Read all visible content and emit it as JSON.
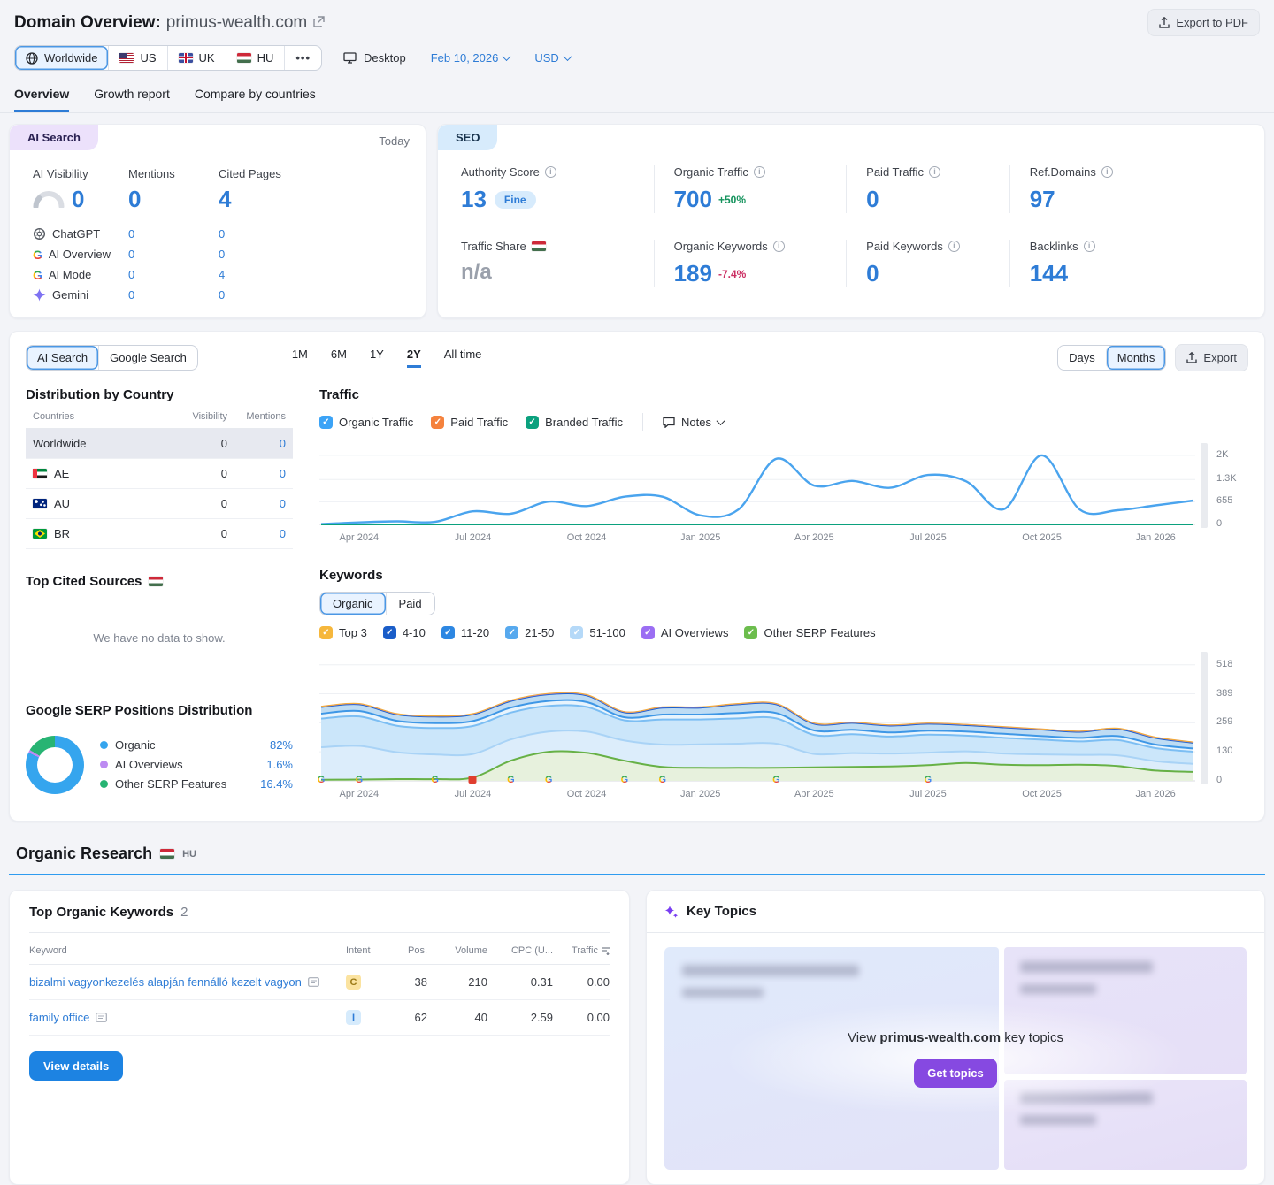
{
  "header": {
    "title": "Domain Overview:",
    "domain": "primus-wealth.com",
    "export_pdf_label": "Export to PDF",
    "locations": [
      {
        "label": "Worldwide",
        "selected": true
      },
      {
        "label": "US"
      },
      {
        "label": "UK"
      },
      {
        "label": "HU"
      }
    ],
    "more_label": "•••",
    "device_label": "Desktop",
    "date_label": "Feb 10, 2026",
    "currency_label": "USD"
  },
  "tabs": {
    "items": [
      {
        "label": "Overview",
        "active": true
      },
      {
        "label": "Growth report"
      },
      {
        "label": "Compare by countries"
      }
    ]
  },
  "ai_card": {
    "badge": "AI Search",
    "period": "Today",
    "cols": {
      "visibility": "AI Visibility",
      "mentions": "Mentions",
      "cited": "Cited Pages"
    },
    "totals": {
      "visibility": "0",
      "mentions": "0",
      "cited": "4"
    },
    "rows": [
      {
        "name": "ChatGPT",
        "mentions": "0",
        "cited": "0"
      },
      {
        "name": "AI Overview",
        "mentions": "0",
        "cited": "0"
      },
      {
        "name": "AI Mode",
        "mentions": "0",
        "cited": "4"
      },
      {
        "name": "Gemini",
        "mentions": "0",
        "cited": "0"
      }
    ]
  },
  "seo_card": {
    "badge": "SEO",
    "metrics": [
      {
        "label": "Authority Score",
        "value": "13",
        "pill": "Fine"
      },
      {
        "label": "Organic Traffic",
        "value": "700",
        "delta": "+50%"
      },
      {
        "label": "Paid Traffic",
        "value": "0"
      },
      {
        "label": "Ref.Domains",
        "value": "97"
      },
      {
        "label": "Traffic Share",
        "value": "n/a"
      },
      {
        "label": "Organic Keywords",
        "value": "189",
        "delta": "-7.4%"
      },
      {
        "label": "Paid Keywords",
        "value": "0"
      },
      {
        "label": "Backlinks",
        "value": "144"
      }
    ]
  },
  "toolbar": {
    "source_tabs": [
      {
        "label": "AI Search",
        "selected": true
      },
      {
        "label": "Google Search"
      }
    ],
    "ranges": [
      {
        "label": "1M"
      },
      {
        "label": "6M"
      },
      {
        "label": "1Y"
      },
      {
        "label": "2Y",
        "active": true
      },
      {
        "label": "All time"
      }
    ],
    "granularity": [
      {
        "label": "Days"
      },
      {
        "label": "Months",
        "selected": true
      }
    ],
    "export_label": "Export"
  },
  "distribution": {
    "title": "Distribution by Country",
    "col_country": "Countries",
    "col_visibility": "Visibility",
    "col_mentions": "Mentions",
    "rows": [
      {
        "country": "Worldwide",
        "visibility": "0",
        "mentions": "0",
        "selected": true
      },
      {
        "country": "AE",
        "visibility": "0",
        "mentions": "0"
      },
      {
        "country": "AU",
        "visibility": "0",
        "mentions": "0"
      },
      {
        "country": "BR",
        "visibility": "0",
        "mentions": "0"
      }
    ]
  },
  "top_cited": {
    "title": "Top Cited Sources",
    "empty": "We have no data to show."
  },
  "serp_dist": {
    "title": "Google SERP Positions Distribution"
  },
  "traffic_section": {
    "title": "Traffic",
    "filters": [
      {
        "label": "Organic Traffic",
        "color": "#3ba3f6"
      },
      {
        "label": "Paid Traffic",
        "color": "#f5823d"
      },
      {
        "label": "Branded Traffic",
        "color": "#0ba17e"
      }
    ],
    "notes_label": "Notes"
  },
  "keywords_section": {
    "title": "Keywords",
    "toggle": [
      {
        "label": "Organic",
        "selected": true
      },
      {
        "label": "Paid"
      }
    ],
    "filters": [
      {
        "label": "Top 3",
        "color": "#f6b73c"
      },
      {
        "label": "4-10",
        "color": "#1a5dc8"
      },
      {
        "label": "11-20",
        "color": "#2d87e2"
      },
      {
        "label": "21-50",
        "color": "#57a9ee"
      },
      {
        "label": "51-100",
        "color": "#b5d9f8"
      },
      {
        "label": "AI Overviews",
        "color": "#9b6ef3"
      },
      {
        "label": "Other SERP Features",
        "color": "#6cbd4d"
      }
    ]
  },
  "organic_research": {
    "title": "Organic Research",
    "country": "HU"
  },
  "top_keywords": {
    "title": "Top Organic Keywords",
    "count": "2",
    "columns": {
      "keyword": "Keyword",
      "intent": "Intent",
      "pos": "Pos.",
      "volume": "Volume",
      "cpc": "CPC (U...",
      "traffic": "Traffic"
    },
    "rows": [
      {
        "keyword": "bizalmi vagyonkezelés alapján fennálló kezelt vagyon",
        "intent": "C",
        "intent_bg": "#fbe3a0",
        "intent_fg": "#9c7a16",
        "pos": "38",
        "volume": "210",
        "cpc": "0.31",
        "traffic": "0.00"
      },
      {
        "keyword": "family office",
        "intent": "I",
        "intent_bg": "#d6ebfc",
        "intent_fg": "#2e7cd6",
        "pos": "62",
        "volume": "40",
        "cpc": "2.59",
        "traffic": "0.00"
      }
    ],
    "button": "View details"
  },
  "key_topics": {
    "title": "Key Topics",
    "cta_pre": "View",
    "cta_domain": "primus-wealth.com",
    "cta_post": "key topics",
    "button": "Get topics"
  },
  "chart_data": [
    {
      "id": "traffic",
      "type": "line",
      "title": "Traffic",
      "n": 24,
      "x_start": "Mar 2024",
      "x_end": "Feb 2026",
      "vmax": 2150,
      "x_ticks": [
        {
          "i": 1,
          "label": "Apr 2024"
        },
        {
          "i": 4,
          "label": "Jul 2024"
        },
        {
          "i": 7,
          "label": "Oct 2024"
        },
        {
          "i": 10,
          "label": "Jan 2025"
        },
        {
          "i": 13,
          "label": "Apr 2025"
        },
        {
          "i": 16,
          "label": "Jul 2025"
        },
        {
          "i": 19,
          "label": "Oct 2025"
        },
        {
          "i": 22,
          "label": "Jan 2026"
        }
      ],
      "y_ticks": [
        {
          "label": "2K",
          "value": 2000
        },
        {
          "label": "1.3K",
          "value": 1300
        },
        {
          "label": "655",
          "value": 655
        },
        {
          "label": "0",
          "value": 0
        }
      ],
      "series": [
        {
          "name": "Organic Traffic",
          "color": "#4aa4ee",
          "values": [
            10,
            60,
            90,
            75,
            380,
            310,
            660,
            530,
            800,
            800,
            260,
            430,
            1900,
            1120,
            1260,
            1060,
            1430,
            1250,
            440,
            2000,
            430,
            410,
            550,
            690
          ]
        },
        {
          "name": "Paid Traffic",
          "color": "#f5823d",
          "values": [
            0,
            0,
            0,
            0,
            0,
            0,
            0,
            0,
            0,
            0,
            0,
            0,
            0,
            0,
            0,
            0,
            0,
            0,
            0,
            0,
            0,
            0,
            0,
            0
          ]
        },
        {
          "name": "Branded Traffic",
          "color": "#0ba17e",
          "values": [
            0,
            0,
            0,
            0,
            0,
            0,
            0,
            0,
            0,
            0,
            0,
            0,
            0,
            0,
            0,
            0,
            0,
            0,
            0,
            0,
            0,
            0,
            0,
            0
          ]
        }
      ]
    },
    {
      "id": "keywords",
      "type": "stacked-area",
      "title": "Keywords",
      "n": 24,
      "x_start": "Mar 2024",
      "x_end": "Feb 2026",
      "vmax": 545,
      "x_ticks": [
        {
          "i": 1,
          "label": "Apr 2024"
        },
        {
          "i": 4,
          "label": "Jul 2024"
        },
        {
          "i": 7,
          "label": "Oct 2024"
        },
        {
          "i": 10,
          "label": "Jan 2025"
        },
        {
          "i": 13,
          "label": "Apr 2025"
        },
        {
          "i": 16,
          "label": "Jul 2025"
        },
        {
          "i": 19,
          "label": "Oct 2025"
        },
        {
          "i": 22,
          "label": "Jan 2026"
        }
      ],
      "y_ticks": [
        {
          "label": "518",
          "value": 518
        },
        {
          "label": "389",
          "value": 389
        },
        {
          "label": "259",
          "value": 259
        },
        {
          "label": "130",
          "value": 130
        },
        {
          "label": "0",
          "value": 0
        }
      ],
      "series": [
        {
          "name": "Other SERP Features",
          "color": "#67b146",
          "fill": "#e7f1dd",
          "values": [
            5,
            6,
            8,
            8,
            15,
            90,
            130,
            125,
            90,
            62,
            58,
            58,
            58,
            60,
            62,
            64,
            70,
            80,
            72,
            70,
            72,
            66,
            46,
            40
          ]
        },
        {
          "name": "51-100",
          "color": "#a9d3f6",
          "fill": "#dcedfb",
          "values": [
            145,
            150,
            120,
            110,
            105,
            95,
            90,
            95,
            90,
            100,
            105,
            108,
            108,
            60,
            62,
            58,
            56,
            52,
            50,
            48,
            44,
            48,
            42,
            36
          ]
        },
        {
          "name": "21-50",
          "color": "#7cbef3",
          "fill": "#cbe6fa",
          "values": [
            128,
            132,
            118,
            118,
            125,
            120,
            115,
            110,
            90,
            112,
            111,
            113,
            113,
            85,
            84,
            76,
            80,
            70,
            70,
            66,
            60,
            68,
            58,
            54
          ]
        },
        {
          "name": "11-20",
          "color": "#3e97e6",
          "fill": "#e8f4fd",
          "values": [
            22,
            24,
            22,
            22,
            22,
            22,
            22,
            22,
            14,
            22,
            22,
            24,
            24,
            20,
            20,
            18,
            18,
            18,
            18,
            16,
            16,
            18,
            16,
            14
          ]
        },
        {
          "name": "4-10",
          "color": "#1b61c9",
          "fill": "#bedcf4",
          "values": [
            30,
            30,
            29,
            29,
            30,
            30,
            30,
            30,
            22,
            31,
            31,
            39,
            39,
            30,
            31,
            31,
            31,
            29,
            29,
            29,
            27,
            32,
            30,
            26
          ]
        },
        {
          "name": "AI Overviews",
          "color": "#a678ef",
          "fill": "#e8ddfb",
          "thin": true,
          "values": [
            2,
            2,
            2,
            2,
            2,
            2,
            2,
            2,
            2,
            2,
            2,
            2,
            2,
            2,
            2,
            2,
            2,
            2,
            2,
            2,
            2,
            2,
            2,
            2
          ]
        },
        {
          "name": "Top 3",
          "color": "#f2ab3c",
          "fill": "#fdeec6",
          "thin": true,
          "values": [
            1,
            1,
            1,
            1,
            1,
            1,
            1,
            1,
            1,
            1,
            1,
            1,
            1,
            1,
            1,
            1,
            1,
            1,
            1,
            1,
            1,
            1,
            1,
            1
          ]
        }
      ],
      "markers": {
        "google_update_idx": [
          0,
          1,
          3,
          5,
          6,
          8,
          9,
          12,
          16
        ],
        "note_idx": 4
      }
    },
    {
      "id": "serp_positions",
      "type": "donut",
      "title": "Google SERP Positions Distribution",
      "slices": [
        {
          "label": "Organic",
          "pct": 82,
          "pct_label": "82%",
          "color": "#35a5ee"
        },
        {
          "label": "AI Overviews",
          "pct": 1.6,
          "pct_label": "1.6%",
          "color": "#bd8bf2"
        },
        {
          "label": "Other SERP Features",
          "pct": 16.4,
          "pct_label": "16.4%",
          "color": "#27b473"
        }
      ]
    }
  ]
}
